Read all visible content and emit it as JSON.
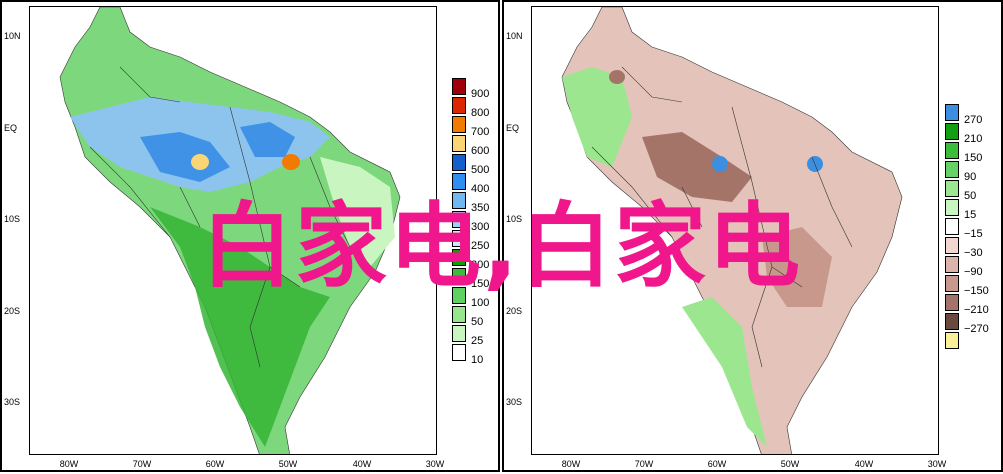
{
  "overlay_text": "白家电,白家电",
  "latitude_labels": [
    "10N",
    "EQ",
    "10S",
    "20S",
    "30S"
  ],
  "longitude_labels": [
    "80W",
    "70W",
    "60W",
    "50W",
    "40W",
    "30W"
  ],
  "left_map": {
    "legend": [
      {
        "label": "900",
        "color": "#a0000a"
      },
      {
        "label": "800",
        "color": "#dc2600"
      },
      {
        "label": "700",
        "color": "#f27a00"
      },
      {
        "label": "600",
        "color": "#fad576"
      },
      {
        "label": "500",
        "color": "#1460cc"
      },
      {
        "label": "400",
        "color": "#2f8ff0"
      },
      {
        "label": "350",
        "color": "#72b8f0"
      },
      {
        "label": "300",
        "color": "#9fd2f2"
      },
      {
        "label": "250",
        "color": "#cfeaf7"
      },
      {
        "label": "200",
        "color": "#0ea000"
      },
      {
        "label": "150",
        "color": "#3cbc3c"
      },
      {
        "label": "100",
        "color": "#60d060"
      },
      {
        "label": "50",
        "color": "#96e68c"
      },
      {
        "label": "25",
        "color": "#c8f5c0"
      },
      {
        "label": "10",
        "color": "#ffffff"
      }
    ]
  },
  "right_map": {
    "legend": [
      {
        "label": "270",
        "color": "#3c8fe0"
      },
      {
        "label": "210",
        "color": "#12a012"
      },
      {
        "label": "150",
        "color": "#3cbc3c"
      },
      {
        "label": "90",
        "color": "#66d266"
      },
      {
        "label": "50",
        "color": "#9be68f"
      },
      {
        "label": "15",
        "color": "#c8f5c0"
      },
      {
        "label": "−15",
        "color": "#ffffff"
      },
      {
        "label": "−30",
        "color": "#f0d8d0"
      },
      {
        "label": "−90",
        "color": "#dcb4aa"
      },
      {
        "label": "−150",
        "color": "#c8988c"
      },
      {
        "label": "−210",
        "color": "#a47468"
      },
      {
        "label": "−270",
        "color": "#6b4a3e"
      },
      {
        "label": "",
        "color": "#faf096"
      }
    ]
  }
}
